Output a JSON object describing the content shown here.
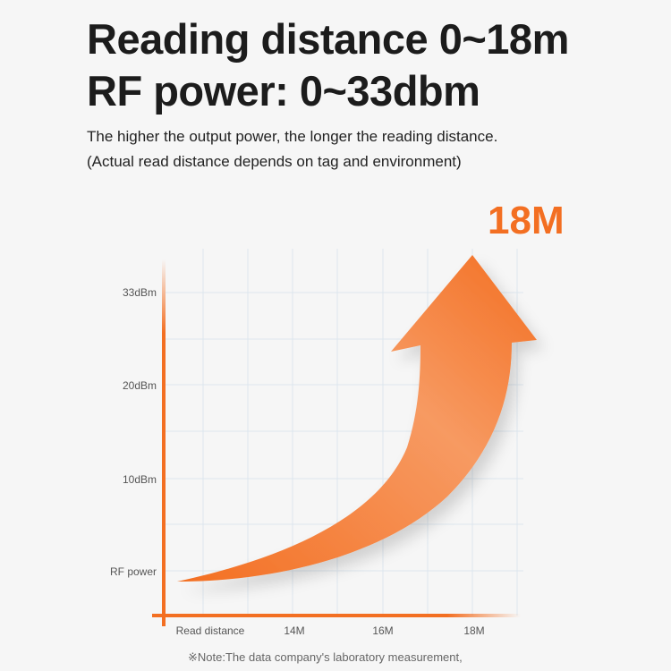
{
  "header": {
    "title_line1": "Reading distance 0~18m",
    "title_line2": "RF power: 0~33dbm",
    "subtitle_line1": "The higher the output power, the longer the reading distance.",
    "subtitle_line2": "(Actual read distance depends on tag and environment)"
  },
  "chart_data": {
    "type": "line",
    "title": "",
    "xlabel": "Read distance",
    "ylabel": "RF power",
    "x_ticks": [
      "14M",
      "16M",
      "18M"
    ],
    "y_ticks": [
      "10dBm",
      "20dBm",
      "33dBm"
    ],
    "callout": "18M",
    "grid": true,
    "series_color": "#f36f22",
    "note": "※Note:The data company's laboratory measurement,"
  }
}
